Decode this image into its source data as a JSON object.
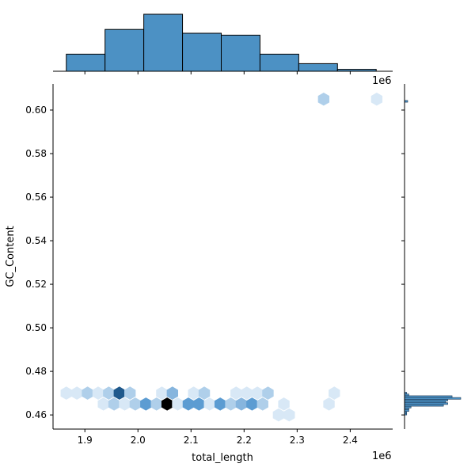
{
  "chart_data": {
    "type": "jointplot-hexbin",
    "xlabel": "total_length",
    "ylabel": "GC_Content",
    "x_offset_text": "1e6",
    "top_offset_text": "1e6",
    "xlim": [
      1.84,
      2.48
    ],
    "ylim": [
      0.4535,
      0.612
    ],
    "x_ticks": [
      1.9,
      2.0,
      2.1,
      2.2,
      2.3,
      2.4
    ],
    "x_tick_labels": [
      "1.9",
      "2.0",
      "2.1",
      "2.2",
      "2.3",
      "2.4"
    ],
    "y_ticks": [
      0.46,
      0.48,
      0.5,
      0.52,
      0.54,
      0.56,
      0.58,
      0.6
    ],
    "y_tick_labels": [
      "0.46",
      "0.48",
      "0.50",
      "0.52",
      "0.54",
      "0.56",
      "0.58",
      "0.60"
    ],
    "hex_color_max": "#000000",
    "hex_color_mid": "#2b7dc4",
    "hex_color_min": "#d8e8f6",
    "hexbins": [
      {
        "x": 1.865,
        "y": 0.47,
        "count": 1
      },
      {
        "x": 1.885,
        "y": 0.47,
        "count": 1
      },
      {
        "x": 1.905,
        "y": 0.47,
        "count": 2
      },
      {
        "x": 1.925,
        "y": 0.47,
        "count": 1
      },
      {
        "x": 1.945,
        "y": 0.47,
        "count": 2
      },
      {
        "x": 1.965,
        "y": 0.47,
        "count": 6
      },
      {
        "x": 1.985,
        "y": 0.47,
        "count": 2
      },
      {
        "x": 2.045,
        "y": 0.47,
        "count": 1
      },
      {
        "x": 2.065,
        "y": 0.47,
        "count": 3
      },
      {
        "x": 2.105,
        "y": 0.47,
        "count": 1
      },
      {
        "x": 2.125,
        "y": 0.47,
        "count": 2
      },
      {
        "x": 2.185,
        "y": 0.47,
        "count": 1
      },
      {
        "x": 2.205,
        "y": 0.47,
        "count": 1
      },
      {
        "x": 2.225,
        "y": 0.47,
        "count": 1
      },
      {
        "x": 2.245,
        "y": 0.47,
        "count": 2
      },
      {
        "x": 2.37,
        "y": 0.47,
        "count": 1
      },
      {
        "x": 1.935,
        "y": 0.465,
        "count": 1
      },
      {
        "x": 1.955,
        "y": 0.465,
        "count": 2
      },
      {
        "x": 1.975,
        "y": 0.465,
        "count": 1
      },
      {
        "x": 1.995,
        "y": 0.465,
        "count": 2
      },
      {
        "x": 2.015,
        "y": 0.465,
        "count": 4
      },
      {
        "x": 2.035,
        "y": 0.465,
        "count": 2
      },
      {
        "x": 2.055,
        "y": 0.465,
        "count": 8
      },
      {
        "x": 2.075,
        "y": 0.465,
        "count": 1
      },
      {
        "x": 2.095,
        "y": 0.465,
        "count": 4
      },
      {
        "x": 2.115,
        "y": 0.465,
        "count": 4
      },
      {
        "x": 2.135,
        "y": 0.465,
        "count": 1
      },
      {
        "x": 2.155,
        "y": 0.465,
        "count": 4
      },
      {
        "x": 2.175,
        "y": 0.465,
        "count": 2
      },
      {
        "x": 2.195,
        "y": 0.465,
        "count": 3
      },
      {
        "x": 2.215,
        "y": 0.465,
        "count": 4
      },
      {
        "x": 2.235,
        "y": 0.465,
        "count": 2
      },
      {
        "x": 2.275,
        "y": 0.465,
        "count": 1
      },
      {
        "x": 2.36,
        "y": 0.465,
        "count": 1
      },
      {
        "x": 2.265,
        "y": 0.46,
        "count": 1
      },
      {
        "x": 2.285,
        "y": 0.46,
        "count": 1
      },
      {
        "x": 2.35,
        "y": 0.605,
        "count": 2
      },
      {
        "x": 2.45,
        "y": 0.605,
        "count": 1
      }
    ],
    "top_hist": {
      "bin_edges": [
        1.865,
        1.938,
        2.011,
        2.084,
        2.157,
        2.23,
        2.303,
        2.376,
        2.449
      ],
      "counts": [
        9,
        22,
        30,
        20,
        19,
        9,
        4,
        1
      ]
    },
    "right_hist": {
      "bin_edges": [
        0.46,
        0.4608,
        0.4616,
        0.4624,
        0.4632,
        0.464,
        0.4648,
        0.4656,
        0.4664,
        0.4672,
        0.468,
        0.4688,
        0.4696,
        0.4704
      ],
      "counts": [
        1,
        1,
        2,
        2,
        3,
        18,
        20,
        19,
        20,
        26,
        22,
        2,
        1
      ],
      "outlier_bin": [
        0.6036,
        0.6044
      ],
      "outlier_count": 2
    },
    "bar_color": "#4c91c4"
  }
}
